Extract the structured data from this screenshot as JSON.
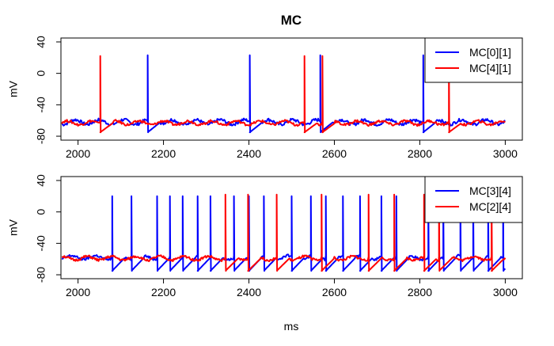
{
  "colors": {
    "blue": "#0000ff",
    "red": "#ff0000",
    "axis": "#000000"
  },
  "chart_data": [
    {
      "type": "line",
      "title": "MC",
      "xlabel": "",
      "ylabel": "mV",
      "xlim": [
        1960,
        3040
      ],
      "ylim": [
        -85,
        45
      ],
      "x_ticks": [
        2000,
        2200,
        2400,
        2600,
        2800,
        3000
      ],
      "y_ticks": [
        -80,
        -40,
        0,
        40
      ],
      "legend_position": "top-right",
      "series": [
        {
          "name": "MC[0][1]",
          "color": "#0000ff",
          "baseline": -62,
          "wobble": 5,
          "spikes": [
            2163,
            2402,
            2567,
            2808
          ],
          "spike_peak": 23
        },
        {
          "name": "MC[4][1]",
          "color": "#ff0000",
          "baseline": -63,
          "wobble": 4,
          "spikes": [
            2052,
            2530,
            2572,
            2868
          ],
          "spike_peak": 22
        }
      ]
    },
    {
      "type": "line",
      "title": "",
      "xlabel": "ms",
      "ylabel": "mV",
      "xlim": [
        1960,
        3040
      ],
      "ylim": [
        -85,
        45
      ],
      "x_ticks": [
        2000,
        2200,
        2400,
        2600,
        2800,
        3000
      ],
      "y_ticks": [
        -80,
        -40,
        0,
        40
      ],
      "legend_position": "top-right",
      "series": [
        {
          "name": "MC[3][4]",
          "color": "#0000ff",
          "baseline": -58,
          "wobble": 4,
          "spikes": [
            2080,
            2125,
            2185,
            2215,
            2245,
            2280,
            2310,
            2365,
            2400,
            2435,
            2500,
            2545,
            2580,
            2620,
            2660,
            2710,
            2745,
            2820,
            2855,
            2895,
            2925,
            2960,
            2995
          ],
          "spike_peak": 20
        },
        {
          "name": "MC[2][4]",
          "color": "#ff0000",
          "baseline": -59,
          "wobble": 4,
          "spikes": [
            2345,
            2398,
            2465,
            2570,
            2680,
            2740,
            2810,
            2845,
            2968
          ],
          "spike_peak": 22
        }
      ]
    }
  ]
}
